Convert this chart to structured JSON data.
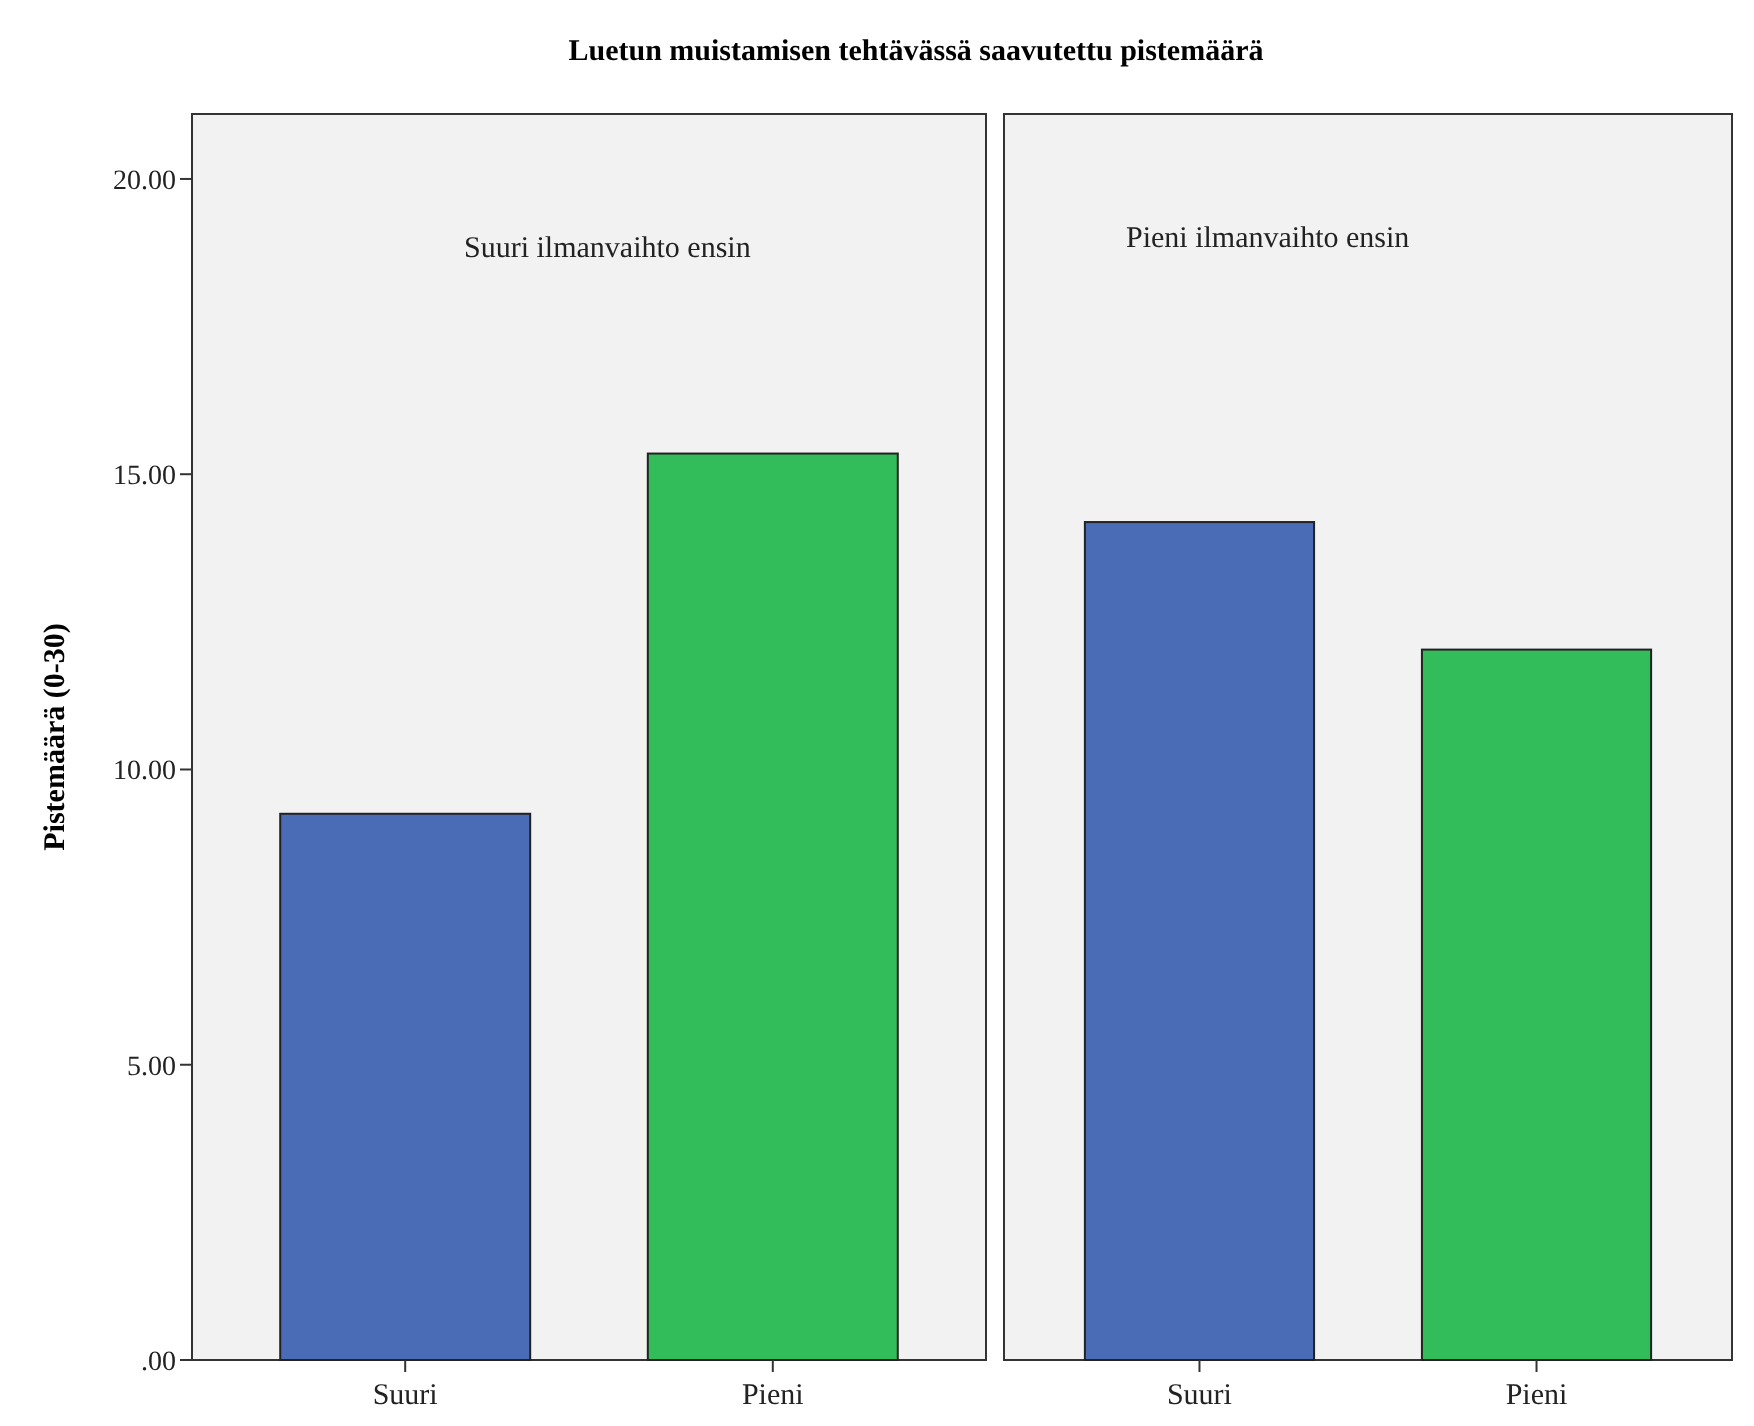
{
  "chart_data": [
    {
      "type": "bar",
      "title": "Luetun muistamisen tehtävässä saavutettu pistemäärä",
      "ylabel": "Pistemäärä (0-30)",
      "annotations": [
        "Suuri ilmanvaihto ensin"
      ],
      "categories": [
        "Suuri",
        "Pieni"
      ],
      "values": [
        9.25,
        15.35
      ],
      "colors": [
        "#4a6bb6",
        "#33bd5a"
      ],
      "ylim": [
        0,
        21.1
      ],
      "yticks": [
        {
          "value": 0,
          "label": ".00"
        },
        {
          "value": 5,
          "label": "5.00"
        },
        {
          "value": 10,
          "label": "10.00"
        },
        {
          "value": 15,
          "label": "15.00"
        },
        {
          "value": 20,
          "label": "20.00"
        }
      ],
      "grid": false
    },
    {
      "type": "bar",
      "annotations": [
        "Pieni ilmanvaihto ensin"
      ],
      "categories": [
        "Suuri",
        "Pieni"
      ],
      "values": [
        14.19,
        12.03
      ],
      "colors": [
        "#4a6bb6",
        "#33bd5a"
      ],
      "ylim": [
        0,
        21.1
      ],
      "tick_labels": "x",
      "grid": false
    }
  ]
}
